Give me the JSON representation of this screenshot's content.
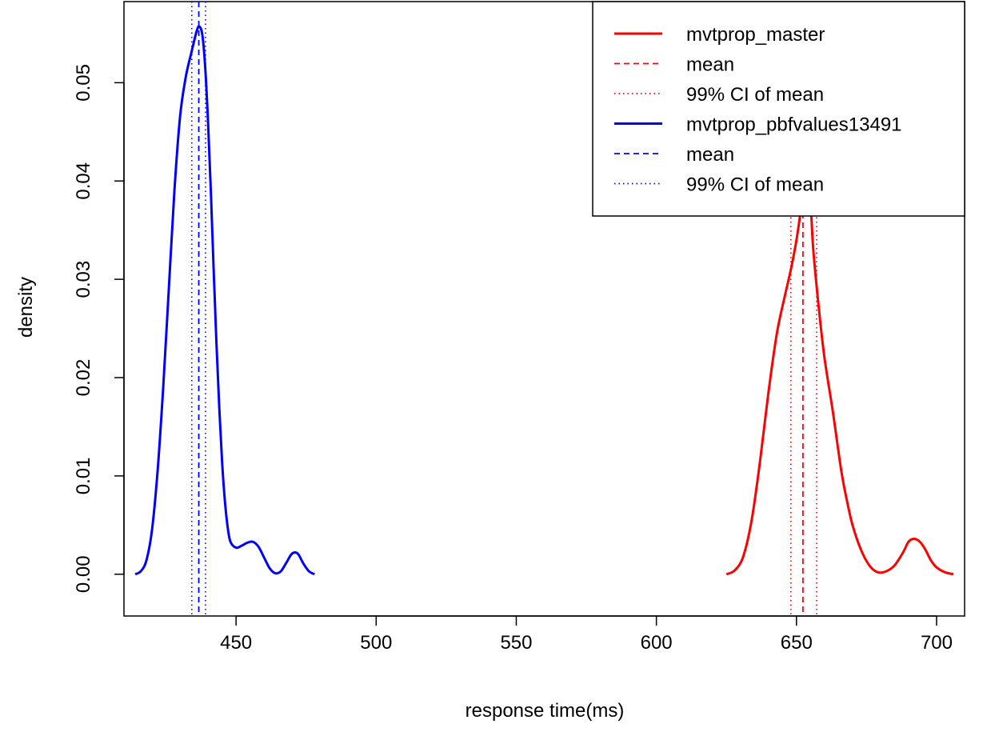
{
  "chart_data": {
    "type": "line",
    "title": "",
    "xlabel": "response time(ms)",
    "ylabel": "density",
    "xlim": [
      410,
      710
    ],
    "ylim": [
      -0.00425,
      0.05825
    ],
    "x_ticks": [
      {
        "value": 450,
        "label": "450"
      },
      {
        "value": 500,
        "label": "500"
      },
      {
        "value": 550,
        "label": "550"
      },
      {
        "value": 600,
        "label": "600"
      },
      {
        "value": 650,
        "label": "650"
      },
      {
        "value": 700,
        "label": "700"
      }
    ],
    "y_ticks": [
      {
        "value": 0.0,
        "label": "0.00"
      },
      {
        "value": 0.01,
        "label": "0.01"
      },
      {
        "value": 0.02,
        "label": "0.02"
      },
      {
        "value": 0.03,
        "label": "0.03"
      },
      {
        "value": 0.04,
        "label": "0.04"
      },
      {
        "value": 0.05,
        "label": "0.05"
      }
    ],
    "grid": false,
    "legend_position": "top-right",
    "series": [
      {
        "name": "mvtprop_master",
        "color": "#ff0000",
        "mean": 652.3,
        "ci99": [
          648.0,
          657.2
        ],
        "points": [
          [
            625,
            0.0
          ],
          [
            628,
            0.0004
          ],
          [
            631,
            0.0018
          ],
          [
            634,
            0.0055
          ],
          [
            637,
            0.0115
          ],
          [
            640,
            0.0185
          ],
          [
            643,
            0.0245
          ],
          [
            646,
            0.0285
          ],
          [
            648,
            0.031
          ],
          [
            650,
            0.034
          ],
          [
            652,
            0.038
          ],
          [
            653,
            0.0405
          ],
          [
            654,
            0.0405
          ],
          [
            655,
            0.038
          ],
          [
            656,
            0.033
          ],
          [
            658,
            0.027
          ],
          [
            660,
            0.022
          ],
          [
            663,
            0.0165
          ],
          [
            666,
            0.0105
          ],
          [
            668,
            0.0075
          ],
          [
            670,
            0.005
          ],
          [
            673,
            0.0025
          ],
          [
            676,
            0.0009
          ],
          [
            679,
            0.0002
          ],
          [
            682,
            0.0003
          ],
          [
            685,
            0.0009
          ],
          [
            688,
            0.0022
          ],
          [
            690,
            0.0033
          ],
          [
            692,
            0.0036
          ],
          [
            694,
            0.0033
          ],
          [
            696,
            0.0025
          ],
          [
            698,
            0.0014
          ],
          [
            700,
            0.0007
          ],
          [
            703,
            0.0002
          ],
          [
            706,
            0.0
          ]
        ]
      },
      {
        "name": "mvtprop_pbfvalues13491",
        "color": "#0000ff",
        "mean": 436.7,
        "ci99": [
          434.2,
          439.1
        ],
        "points": [
          [
            414,
            0.0
          ],
          [
            416,
            0.0003
          ],
          [
            418,
            0.0014
          ],
          [
            420,
            0.0045
          ],
          [
            422,
            0.0105
          ],
          [
            424,
            0.019
          ],
          [
            426,
            0.029
          ],
          [
            428,
            0.039
          ],
          [
            430,
            0.0465
          ],
          [
            432,
            0.0505
          ],
          [
            434,
            0.053
          ],
          [
            436,
            0.0553
          ],
          [
            437,
            0.0557
          ],
          [
            438,
            0.0548
          ],
          [
            439,
            0.0515
          ],
          [
            440,
            0.046
          ],
          [
            441,
            0.039
          ],
          [
            442,
            0.031
          ],
          [
            443,
            0.0235
          ],
          [
            444,
            0.017
          ],
          [
            445,
            0.0115
          ],
          [
            446,
            0.0075
          ],
          [
            447,
            0.0048
          ],
          [
            448,
            0.0033
          ],
          [
            450,
            0.0027
          ],
          [
            452,
            0.0029
          ],
          [
            454,
            0.0032
          ],
          [
            456,
            0.0033
          ],
          [
            458,
            0.0028
          ],
          [
            460,
            0.0017
          ],
          [
            462,
            0.0006
          ],
          [
            464,
            0.0001
          ],
          [
            466,
            0.0003
          ],
          [
            468,
            0.0012
          ],
          [
            470,
            0.0021
          ],
          [
            472,
            0.0021
          ],
          [
            474,
            0.0011
          ],
          [
            476,
            0.0003
          ],
          [
            478,
            0.0
          ]
        ]
      }
    ],
    "legend": [
      {
        "label": "mvtprop_master",
        "color": "#ff0000",
        "style": "solid"
      },
      {
        "label": "mean",
        "color": "#ff0000",
        "style": "dashed"
      },
      {
        "label": "99% CI  of mean",
        "color": "#ff0000",
        "style": "dotted"
      },
      {
        "label": "mvtprop_pbfvalues13491",
        "color": "#0000ff",
        "style": "solid"
      },
      {
        "label": "mean",
        "color": "#0000ff",
        "style": "dashed"
      },
      {
        "label": "99% CI  of mean",
        "color": "#0000ff",
        "style": "dotted"
      }
    ]
  }
}
